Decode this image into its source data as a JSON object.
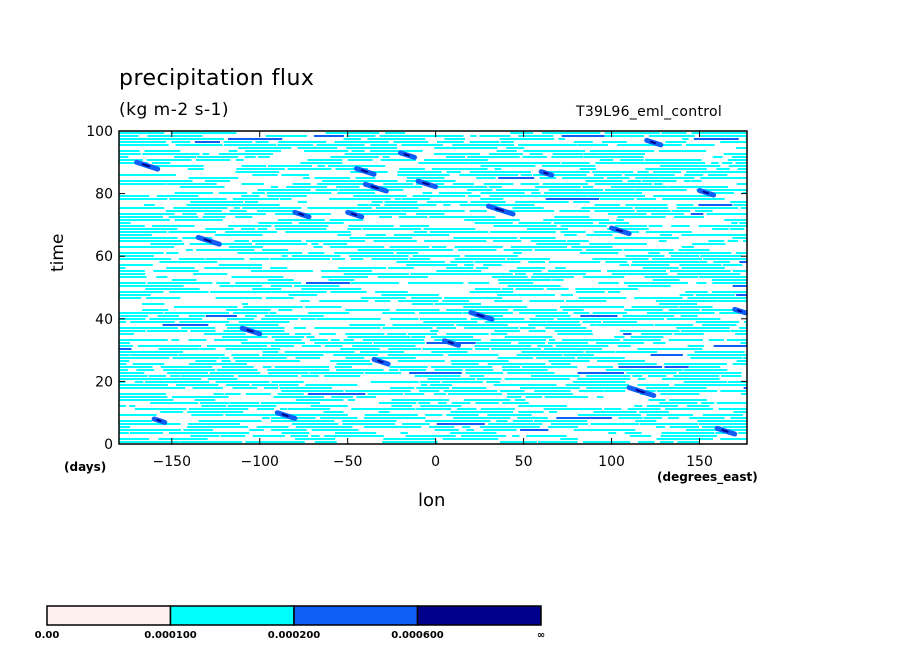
{
  "chart_data": {
    "type": "heatmap",
    "title": "precipitation flux",
    "units": "(kg m-2 s-1)",
    "run_label": "T39L96_eml_control",
    "xlabel": "lon",
    "ylabel": "time",
    "x_unit": "(degrees_east)",
    "y_unit": "(days)",
    "xlim": [
      -180,
      177
    ],
    "ylim": [
      0,
      100
    ],
    "x_ticks": [
      -150,
      -100,
      -50,
      0,
      50,
      100,
      150
    ],
    "y_ticks": [
      0,
      20,
      40,
      60,
      80,
      100
    ],
    "colorbar": {
      "levels": [
        "0.00",
        "0.000100",
        "0.000200",
        "0.000600",
        "∞"
      ],
      "colors": [
        "#fff0f0",
        "#00ffff",
        "#0f5ff7",
        "#00008c"
      ]
    },
    "dark_streaks": [
      {
        "lon": -170,
        "t": 90,
        "len": 12
      },
      {
        "lon": -45,
        "t": 88,
        "len": 10
      },
      {
        "lon": -40,
        "t": 83,
        "len": 12
      },
      {
        "lon": -10,
        "t": 84,
        "len": 10
      },
      {
        "lon": -20,
        "t": 93,
        "len": 8
      },
      {
        "lon": 30,
        "t": 76,
        "len": 14
      },
      {
        "lon": -135,
        "t": 66,
        "len": 12
      },
      {
        "lon": -80,
        "t": 74,
        "len": 8
      },
      {
        "lon": -50,
        "t": 74,
        "len": 8
      },
      {
        "lon": 150,
        "t": 81,
        "len": 8
      },
      {
        "lon": 60,
        "t": 87,
        "len": 6
      },
      {
        "lon": 100,
        "t": 69,
        "len": 10
      },
      {
        "lon": 20,
        "t": 42,
        "len": 12
      },
      {
        "lon": -110,
        "t": 37,
        "len": 10
      },
      {
        "lon": 5,
        "t": 33,
        "len": 8
      },
      {
        "lon": 110,
        "t": 18,
        "len": 14
      },
      {
        "lon": -90,
        "t": 10,
        "len": 10
      },
      {
        "lon": 160,
        "t": 5,
        "len": 10
      },
      {
        "lon": 170,
        "t": 43,
        "len": 6
      },
      {
        "lon": -35,
        "t": 27,
        "len": 8
      },
      {
        "lon": 120,
        "t": 97,
        "len": 8
      },
      {
        "lon": -160,
        "t": 8,
        "len": 6
      }
    ]
  }
}
